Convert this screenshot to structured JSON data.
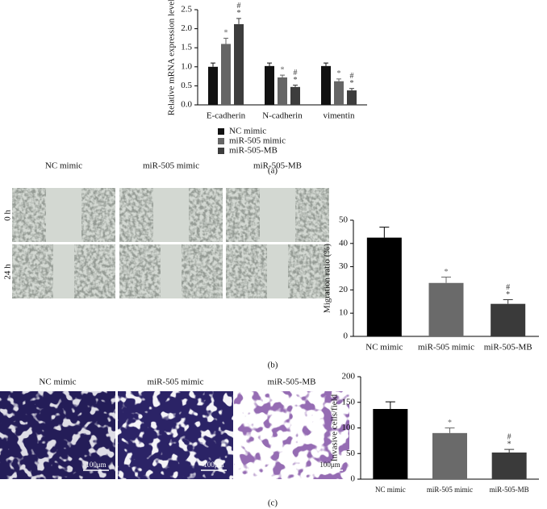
{
  "chart_data": [
    {
      "type": "bar",
      "ylabel": "Relative mRNA expression level",
      "categories": [
        "E-cadherin",
        "N-cadherin",
        "vimentin"
      ],
      "series": [
        {
          "name": "NC mimic",
          "color": "#111111",
          "values": [
            1.0,
            1.02,
            1.02
          ],
          "errors": [
            0.1,
            0.08,
            0.08
          ],
          "annotations": [
            [],
            [],
            []
          ]
        },
        {
          "name": "miR-505 mimic",
          "color": "#666666",
          "values": [
            1.6,
            0.72,
            0.62
          ],
          "errors": [
            0.15,
            0.06,
            0.06
          ],
          "annotations": [
            [
              "*"
            ],
            [
              "*"
            ],
            [
              "*"
            ]
          ]
        },
        {
          "name": "miR-505-MB",
          "color": "#3d3d3d",
          "values": [
            2.12,
            0.47,
            0.38
          ],
          "errors": [
            0.15,
            0.05,
            0.05
          ],
          "annotations": [
            [
              "#",
              "*"
            ],
            [
              "#",
              "*"
            ],
            [
              "#",
              "*"
            ]
          ]
        }
      ],
      "ylim": [
        0,
        2.5
      ],
      "yticks": [
        {
          "value": 0,
          "label": "0.0"
        },
        0.5,
        {
          "value": 1,
          "label": "1.0"
        },
        1.5,
        {
          "value": 2,
          "label": "2.0"
        },
        2.5
      ],
      "legend": "bottom"
    },
    {
      "type": "bar",
      "ylabel": "Migration ratio (%)",
      "categories": [
        "NC mimic",
        "miR-505 mimic",
        "miR-505-MB"
      ],
      "series": [
        {
          "colors": [
            "#000000",
            "#6a6a6a",
            "#3a3a3a"
          ],
          "values": [
            42.5,
            23,
            14
          ],
          "errors": [
            4.5,
            2.5,
            1.8
          ],
          "annotations": [
            [],
            [
              "*"
            ],
            [
              "#",
              "*"
            ]
          ]
        }
      ],
      "ylim": [
        0,
        50
      ],
      "yticks": [
        0,
        10,
        20,
        30,
        40,
        50
      ]
    },
    {
      "type": "bar",
      "ylabel": "Invasive cells/field",
      "categories": [
        "NC mimic",
        "miR-505 mimic",
        "miR-505-MB"
      ],
      "series": [
        {
          "colors": [
            "#000000",
            "#6a6a6a",
            "#3a3a3a"
          ],
          "values": [
            137,
            90,
            52
          ],
          "errors": [
            14,
            10,
            6
          ],
          "annotations": [
            [],
            [
              "*"
            ],
            [
              "#",
              "*"
            ]
          ]
        }
      ],
      "ylim": [
        0,
        200
      ],
      "yticks": [
        0,
        50,
        100,
        150,
        200
      ]
    }
  ],
  "panels": {
    "a": {
      "label": "(a)"
    },
    "b": {
      "label": "(b)",
      "columns": [
        "NC mimic",
        "miR-505 mimic",
        "miR-505-MB"
      ],
      "rows": [
        "0 h",
        "24 h"
      ]
    },
    "c": {
      "label": "(c)",
      "columns": [
        "NC mimic",
        "miR-505 mimic",
        "miR-505-MB"
      ],
      "scale_bar": "100μm"
    }
  }
}
